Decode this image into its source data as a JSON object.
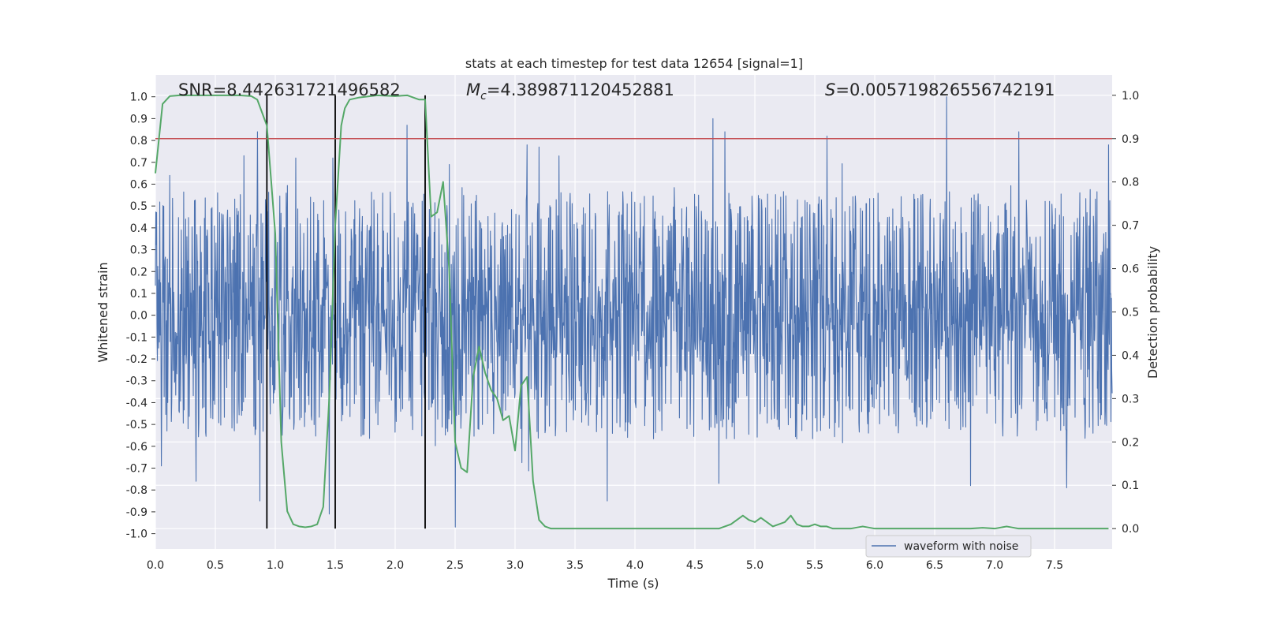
{
  "chart_data": {
    "type": "line",
    "title": "stats at each timestep for test data 12654 [signal=1]",
    "xlabel": "Time (s)",
    "ylabel": "Whitened strain",
    "y2label": "Detection probability",
    "xlim": [
      0.0,
      7.98
    ],
    "ylim": [
      -1.07,
      1.1
    ],
    "y2lim": [
      -0.047,
      1.047
    ],
    "xticks": [
      "0.0",
      "0.5",
      "1.0",
      "1.5",
      "2.0",
      "2.5",
      "3.0",
      "3.5",
      "4.0",
      "4.5",
      "5.0",
      "5.5",
      "6.0",
      "6.5",
      "7.0",
      "7.5"
    ],
    "yticks": [
      "1.0",
      "0.9",
      "0.8",
      "0.7",
      "0.6",
      "0.5",
      "0.4",
      "0.3",
      "0.2",
      "0.1",
      "0.0",
      "-0.1",
      "-0.2",
      "-0.3",
      "-0.4",
      "-0.5",
      "-0.6",
      "-0.7",
      "-0.8",
      "-0.9",
      "-1.0"
    ],
    "y2ticks": [
      "0.0",
      "0.1",
      "0.2",
      "0.3",
      "0.4",
      "0.5",
      "0.6",
      "0.7",
      "0.8",
      "0.9",
      "1.0"
    ],
    "grid": true,
    "legend_placement": "lower-right",
    "annotations": {
      "snr": "SNR=8.442631721496582",
      "mc_symbol": "M",
      "mc_sub": "c",
      "mc_value": "=4.389871120452881",
      "s_symbol": "S",
      "s_value": "=0.005719826556742191"
    },
    "threshold": {
      "value": 0.9,
      "axis": "right",
      "color": "#c44e52"
    },
    "vlines": [
      0.93,
      1.5,
      2.25
    ],
    "series": [
      {
        "name": "waveform with noise",
        "axis": "left",
        "color": "#4c72b0",
        "kind": "noise",
        "typical_amplitude": 0.42,
        "min": -0.97,
        "max": 1.0,
        "peaks": [
          [
            0.05,
            -0.69
          ],
          [
            0.12,
            0.64
          ],
          [
            0.34,
            -0.76
          ],
          [
            0.52,
            0.56
          ],
          [
            0.74,
            0.73
          ],
          [
            0.85,
            0.84
          ],
          [
            0.87,
            -0.85
          ],
          [
            1.17,
            0.72
          ],
          [
            1.45,
            -0.91
          ],
          [
            1.48,
            0.72
          ],
          [
            2.1,
            0.87
          ],
          [
            2.45,
            0.69
          ],
          [
            2.5,
            -0.97
          ],
          [
            3.1,
            0.78
          ],
          [
            3.2,
            0.77
          ],
          [
            3.77,
            -0.85
          ],
          [
            4.65,
            0.9
          ],
          [
            4.7,
            -0.77
          ],
          [
            4.75,
            0.84
          ],
          [
            5.6,
            0.82
          ],
          [
            6.6,
            1.0
          ],
          [
            6.8,
            -0.78
          ],
          [
            7.2,
            0.84
          ],
          [
            7.6,
            0.79
          ],
          [
            7.6,
            -0.79
          ],
          [
            7.95,
            0.78
          ]
        ]
      },
      {
        "name": "",
        "axis": "right",
        "color": "#55a868",
        "x": [
          0.0,
          0.06,
          0.12,
          0.2,
          0.4,
          0.6,
          0.7,
          0.8,
          0.85,
          0.93,
          1.0,
          1.05,
          1.1,
          1.15,
          1.2,
          1.25,
          1.3,
          1.35,
          1.4,
          1.45,
          1.5,
          1.55,
          1.58,
          1.62,
          1.7,
          1.85,
          2.0,
          2.1,
          2.2,
          2.25,
          2.3,
          2.35,
          2.4,
          2.45,
          2.5,
          2.55,
          2.6,
          2.65,
          2.7,
          2.75,
          2.8,
          2.85,
          2.9,
          2.95,
          3.0,
          3.05,
          3.1,
          3.15,
          3.2,
          3.25,
          3.3,
          3.35,
          3.5,
          3.7,
          3.9,
          4.0,
          4.2,
          4.5,
          4.7,
          4.8,
          4.85,
          4.9,
          4.95,
          5.0,
          5.05,
          5.1,
          5.15,
          5.2,
          5.25,
          5.3,
          5.35,
          5.4,
          5.45,
          5.5,
          5.55,
          5.6,
          5.65,
          5.7,
          5.8,
          5.9,
          6.0,
          6.2,
          6.5,
          6.8,
          6.9,
          7.0,
          7.1,
          7.2,
          7.3,
          7.5,
          7.95
        ],
        "y": [
          0.82,
          0.98,
          0.998,
          1.0,
          1.0,
          1.0,
          1.0,
          0.998,
          0.99,
          0.93,
          0.68,
          0.2,
          0.04,
          0.01,
          0.005,
          0.003,
          0.005,
          0.01,
          0.05,
          0.3,
          0.7,
          0.93,
          0.97,
          0.99,
          0.995,
          1.0,
          0.998,
          1.0,
          0.99,
          0.99,
          0.72,
          0.73,
          0.8,
          0.6,
          0.2,
          0.14,
          0.13,
          0.35,
          0.42,
          0.36,
          0.32,
          0.3,
          0.25,
          0.26,
          0.18,
          0.33,
          0.35,
          0.11,
          0.02,
          0.005,
          0.0,
          0.0,
          0.0,
          0.0,
          0.0,
          0.0,
          0.0,
          0.0,
          0.0,
          0.01,
          0.02,
          0.03,
          0.02,
          0.015,
          0.025,
          0.015,
          0.005,
          0.01,
          0.015,
          0.03,
          0.01,
          0.005,
          0.005,
          0.01,
          0.005,
          0.005,
          0.0,
          0.0,
          0.0,
          0.005,
          0.0,
          0.0,
          0.0,
          0.0,
          0.002,
          0.0,
          0.005,
          0.0,
          0.0,
          0.0,
          0.0
        ]
      }
    ]
  }
}
